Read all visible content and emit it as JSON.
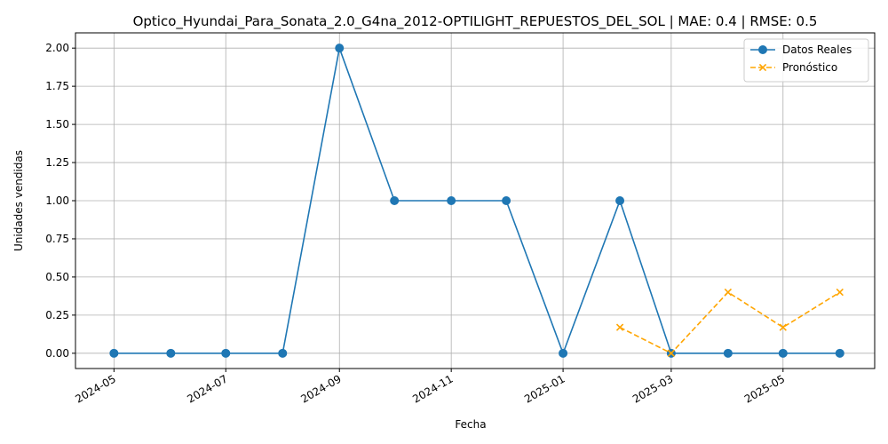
{
  "chart_data": {
    "type": "line",
    "title": "Optico_Hyundai_Para_Sonata_2.0_G4na_2012-OPTILIGHT_REPUESTOS_DEL_SOL | MAE: 0.4 | RMSE: 0.5",
    "xlabel": "Fecha",
    "ylabel": "Unidades vendidas",
    "x_ticks": [
      "2024-05",
      "2024-07",
      "2024-09",
      "2024-11",
      "2025-01",
      "2025-03",
      "2025-05"
    ],
    "y_ticks": [
      "0.00",
      "0.25",
      "0.50",
      "0.75",
      "1.00",
      "1.25",
      "1.50",
      "1.75",
      "2.00"
    ],
    "ylim": [
      -0.1,
      2.1
    ],
    "xlim": [
      "2024-04-10",
      "2025-06-20"
    ],
    "grid": true,
    "legend_position": "top-right",
    "series": [
      {
        "name": "Datos Reales",
        "color": "#1f77b4",
        "marker": "circle",
        "linestyle": "solid",
        "x": [
          "2024-05-01",
          "2024-06-01",
          "2024-07-01",
          "2024-08-01",
          "2024-09-01",
          "2024-10-01",
          "2024-11-01",
          "2024-12-01",
          "2025-01-01",
          "2025-02-01",
          "2025-03-01",
          "2025-04-01",
          "2025-05-01",
          "2025-06-01"
        ],
        "values": [
          0,
          0,
          0,
          0,
          2,
          1,
          1,
          1,
          0,
          1,
          0,
          0,
          0,
          0
        ]
      },
      {
        "name": "Pronóstico",
        "color": "#ffa500",
        "marker": "x",
        "linestyle": "dashed",
        "x": [
          "2025-02-01",
          "2025-03-01",
          "2025-04-01",
          "2025-05-01",
          "2025-06-01"
        ],
        "values": [
          0.17,
          0.0,
          0.4,
          0.17,
          0.4
        ]
      }
    ]
  }
}
